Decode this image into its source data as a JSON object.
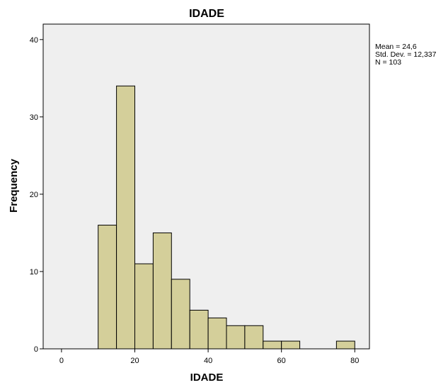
{
  "chart_data": {
    "type": "bar",
    "title": "IDADE",
    "xlabel": "IDADE",
    "ylabel": "Frequency",
    "xlim": [
      -5,
      84
    ],
    "ylim": [
      0,
      42
    ],
    "x_ticks": [
      0,
      20,
      40,
      60,
      80
    ],
    "y_ticks": [
      0,
      10,
      20,
      30,
      40
    ],
    "bin_width": 5,
    "bins": [
      {
        "start": 10,
        "end": 15,
        "value": 16
      },
      {
        "start": 15,
        "end": 20,
        "value": 34
      },
      {
        "start": 20,
        "end": 25,
        "value": 11
      },
      {
        "start": 25,
        "end": 30,
        "value": 15
      },
      {
        "start": 30,
        "end": 35,
        "value": 9
      },
      {
        "start": 35,
        "end": 40,
        "value": 5
      },
      {
        "start": 40,
        "end": 45,
        "value": 4
      },
      {
        "start": 45,
        "end": 50,
        "value": 3
      },
      {
        "start": 50,
        "end": 55,
        "value": 3
      },
      {
        "start": 55,
        "end": 60,
        "value": 1
      },
      {
        "start": 60,
        "end": 65,
        "value": 1
      },
      {
        "start": 75,
        "end": 80,
        "value": 1
      }
    ],
    "stats": [
      "Mean = 24,6",
      "Std. Dev. = 12,337",
      "N = 103"
    ],
    "grid": false,
    "colors": {
      "bar_fill": "#d4cf9a",
      "bar_stroke": "#000000",
      "plot_bg": "#efefef"
    }
  }
}
